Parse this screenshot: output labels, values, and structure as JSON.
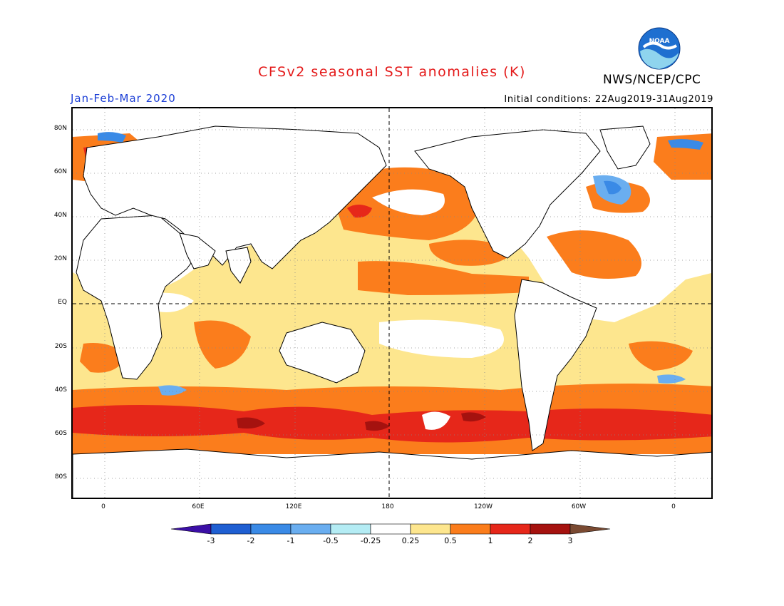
{
  "title": "CFSv2 seasonal SST anomalies (K)",
  "organization": "NWS/NCEP/CPC",
  "logo_text": "NOAA",
  "season": "Jan-Feb-Mar 2020",
  "initial_conditions": "Initial conditions: 22Aug2019-31Aug2019",
  "lat_ticks": [
    "80N",
    "60N",
    "40N",
    "20N",
    "EQ",
    "20S",
    "40S",
    "60S",
    "80S"
  ],
  "lon_ticks": [
    "0",
    "60E",
    "120E",
    "180",
    "120W",
    "60W",
    "0"
  ],
  "colorbar": {
    "labels": [
      "-3",
      "-2",
      "-1",
      "-0.5",
      "-0.25",
      "0.25",
      "0.5",
      "1",
      "2",
      "3"
    ],
    "colors": [
      "#3b0fa6",
      "#1f5fd2",
      "#3a8ae6",
      "#6aaef0",
      "#b4ecf4",
      "#ffffff",
      "#fde68e",
      "#fb7d1c",
      "#e6271a",
      "#a5120f",
      "#7a4a32"
    ]
  }
}
